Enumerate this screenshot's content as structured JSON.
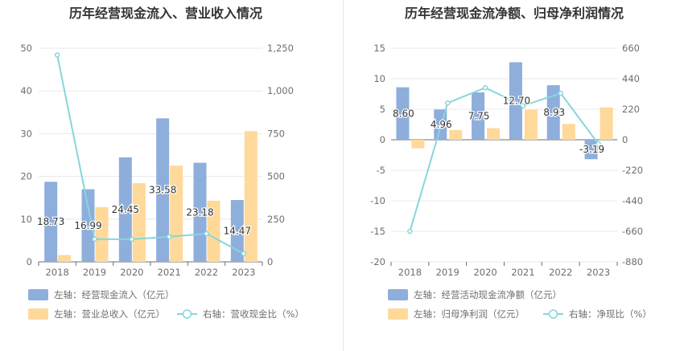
{
  "chart_data": [
    {
      "type": "bar",
      "title": "历年经营现金流入、营业收入情况",
      "categories": [
        "2018",
        "2019",
        "2020",
        "2021",
        "2022",
        "2023"
      ],
      "left_axis": {
        "ylim": [
          0,
          50
        ],
        "ticks": [
          "0",
          "10",
          "20",
          "30",
          "40",
          "50"
        ]
      },
      "right_axis": {
        "ylim": [
          0,
          1250
        ],
        "ticks": [
          "0",
          "250",
          "500",
          "750",
          "1,000",
          "1,250"
        ]
      },
      "series": [
        {
          "name": "左轴：经营现金流入（亿元）",
          "kind": "bar",
          "axis": "left",
          "color": "#8eaedc",
          "values": [
            18.73,
            16.99,
            24.45,
            33.58,
            23.18,
            14.47
          ],
          "labels": [
            "18.73",
            "16.99",
            "24.45",
            "33.58",
            "23.18",
            "14.47"
          ]
        },
        {
          "name": "左轴：营业总收入（亿元）",
          "kind": "bar",
          "axis": "left",
          "color": "#ffd999",
          "values": [
            1.6,
            12.8,
            18.4,
            22.5,
            14.3,
            30.6
          ]
        },
        {
          "name": "右轴：营收现金比（%）",
          "kind": "line",
          "axis": "right",
          "color": "#86d6dc",
          "values": [
            1210,
            133,
            132,
            147,
            165,
            48
          ]
        }
      ],
      "legend_position": "bottom",
      "grid": true
    },
    {
      "type": "bar",
      "title": "历年经营现金流净额、归母净利润情况",
      "categories": [
        "2018",
        "2019",
        "2020",
        "2021",
        "2022",
        "2023"
      ],
      "left_axis": {
        "ylim": [
          -20,
          15
        ],
        "ticks": [
          "-20",
          "-15",
          "-10",
          "-5",
          "0",
          "5",
          "10",
          "15"
        ]
      },
      "right_axis": {
        "ylim": [
          -880,
          660
        ],
        "ticks": [
          "-880",
          "-660",
          "-440",
          "-220",
          "0",
          "220",
          "440",
          "660"
        ]
      },
      "series": [
        {
          "name": "左轴：经营活动现金流净额（亿元）",
          "kind": "bar",
          "axis": "left",
          "color": "#8eaedc",
          "values": [
            8.6,
            4.96,
            7.75,
            12.7,
            8.93,
            -3.19
          ],
          "labels": [
            "8.60",
            "4.96",
            "7.75",
            "12.70",
            "8.93",
            "-3.19"
          ]
        },
        {
          "name": "左轴：归母净利润（亿元）",
          "kind": "bar",
          "axis": "left",
          "color": "#ffd999",
          "values": [
            -1.4,
            1.6,
            1.9,
            4.9,
            2.6,
            5.3
          ]
        },
        {
          "name": "右轴：净现比（%）",
          "kind": "line",
          "axis": "right",
          "color": "#86d6dc",
          "values": [
            -660,
            265,
            375,
            245,
            335,
            -30
          ]
        }
      ],
      "legend_position": "bottom",
      "grid": true
    }
  ]
}
